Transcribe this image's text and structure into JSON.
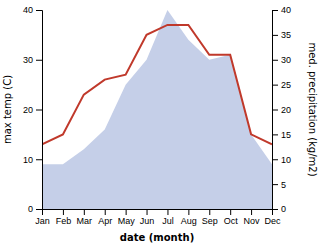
{
  "chart_data": {
    "type": "line",
    "categories": [
      "Jan",
      "Feb",
      "Mar",
      "Apr",
      "May",
      "Jun",
      "Jul",
      "Aug",
      "Sep",
      "Oct",
      "Nov",
      "Dec"
    ],
    "xlabel": "date (month)",
    "ylabel": "max temp (C)",
    "y2label": "med. precipitation (kg/m2)",
    "series": [
      {
        "type": "area",
        "axis": "y2",
        "color": "#c5cfe8",
        "values": [
          9,
          9,
          12,
          16,
          25,
          30,
          40,
          34,
          30,
          31,
          15,
          9
        ]
      },
      {
        "type": "line",
        "color": "#c0392b",
        "values": [
          13,
          15,
          23,
          26,
          27,
          35,
          37,
          37,
          31,
          31,
          15,
          13
        ]
      }
    ],
    "ylim": [
      0,
      40
    ],
    "yticks": [
      0,
      10,
      20,
      30,
      40
    ],
    "y2lim": [
      0,
      40
    ],
    "y2ticks": [
      0,
      5,
      10,
      15,
      20,
      25,
      30,
      35,
      40
    ],
    "grid": false
  }
}
